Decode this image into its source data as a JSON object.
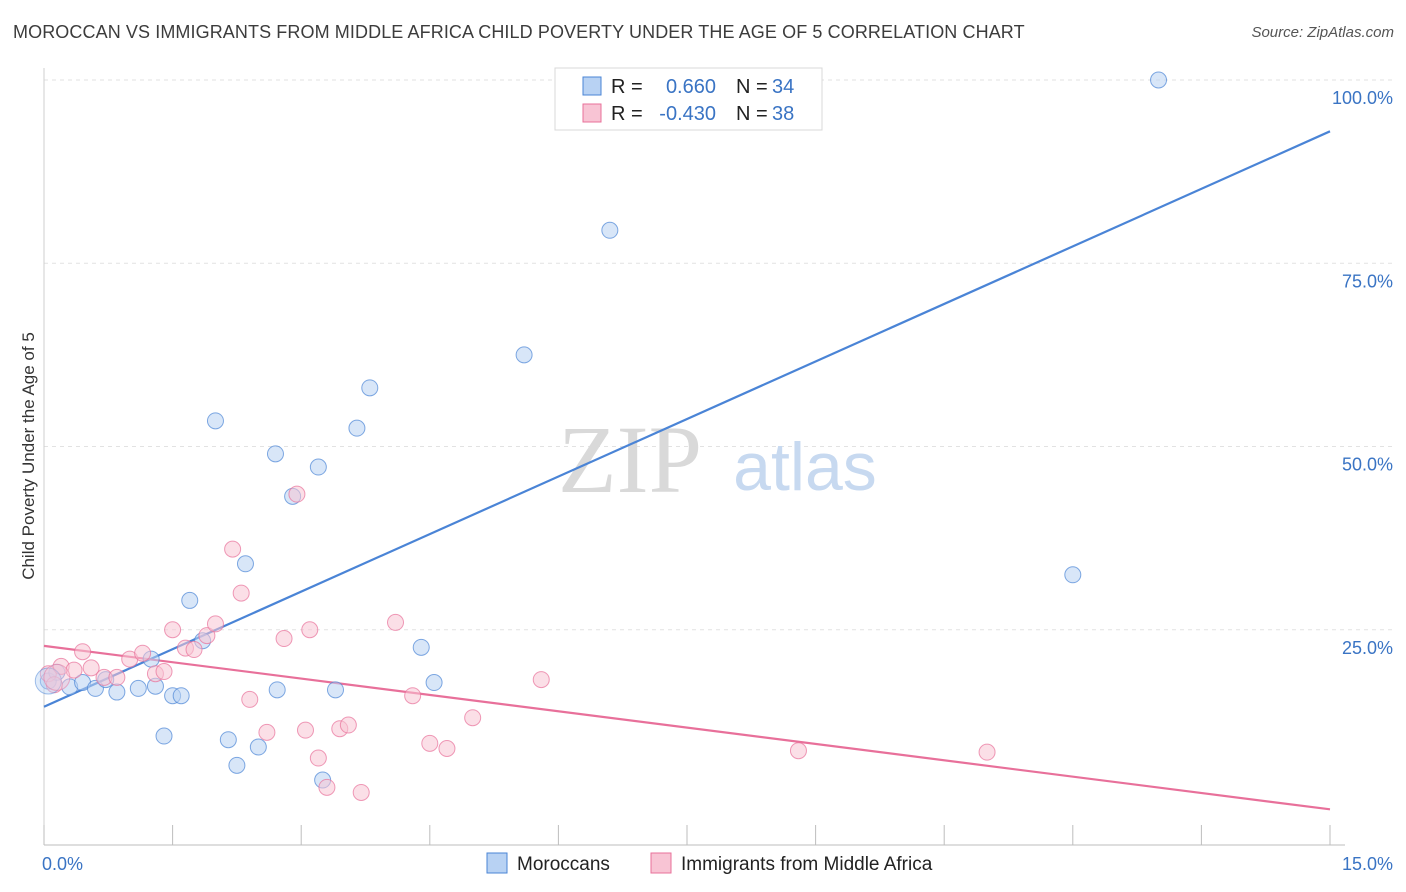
{
  "title": "MOROCCAN VS IMMIGRANTS FROM MIDDLE AFRICA CHILD POVERTY UNDER THE AGE OF 5 CORRELATION CHART",
  "source": "Source: ZipAtlas.com",
  "watermark": {
    "zip": "ZIP",
    "atlas": "atlas"
  },
  "colors": {
    "blue": "#4a84d6",
    "blue_fill": "#b8d2f3",
    "pink": "#e8709a",
    "pink_fill": "#f8c4d4",
    "tick": "#3a74c4"
  },
  "chart_data": {
    "type": "scatter",
    "ylabel": "Child Poverty Under the Age of 5",
    "xlim": [
      0,
      15
    ],
    "ylim": [
      0,
      100
    ],
    "x_tick_labels": [
      "0.0%",
      "15.0%"
    ],
    "y_ticks": [
      25,
      50,
      75,
      100
    ],
    "y_tick_labels": [
      "25.0%",
      "50.0%",
      "75.0%",
      "100.0%"
    ],
    "grid": true,
    "legend": {
      "placement": "top-center",
      "rows": [
        {
          "r_label": "R =",
          "r_value": "0.660",
          "n_label": "N =",
          "n_value": "34"
        },
        {
          "r_label": "R =",
          "r_value": "-0.430",
          "n_label": "N =",
          "n_value": "38"
        }
      ]
    },
    "series": [
      {
        "name": "Moroccans",
        "color": "#4a84d6",
        "trend": [
          [
            0,
            14.5
          ],
          [
            15,
            93.0
          ]
        ],
        "points": [
          [
            0.05,
            18.0
          ],
          [
            0.15,
            19.2
          ],
          [
            0.3,
            17.2
          ],
          [
            0.45,
            17.8
          ],
          [
            0.6,
            17.0
          ],
          [
            0.72,
            18.2
          ],
          [
            0.85,
            16.5
          ],
          [
            1.1,
            17.0
          ],
          [
            1.25,
            21.0
          ],
          [
            1.3,
            17.3
          ],
          [
            1.4,
            10.5
          ],
          [
            1.5,
            16.0
          ],
          [
            1.6,
            16.0
          ],
          [
            1.7,
            29.0
          ],
          [
            1.85,
            23.5
          ],
          [
            2.0,
            53.5
          ],
          [
            2.15,
            10.0
          ],
          [
            2.25,
            6.5
          ],
          [
            2.35,
            34.0
          ],
          [
            2.5,
            9.0
          ],
          [
            2.7,
            49.0
          ],
          [
            2.72,
            16.8
          ],
          [
            2.9,
            43.2
          ],
          [
            3.2,
            47.2
          ],
          [
            3.25,
            4.5
          ],
          [
            3.4,
            16.8
          ],
          [
            3.65,
            52.5
          ],
          [
            3.8,
            58.0
          ],
          [
            4.4,
            22.6
          ],
          [
            4.55,
            17.8
          ],
          [
            5.6,
            62.5
          ],
          [
            6.6,
            79.5
          ],
          [
            12.0,
            32.5
          ],
          [
            13.0,
            100.0
          ]
        ]
      },
      {
        "name": "Immigrants from Middle Africa",
        "color": "#e8709a",
        "trend": [
          [
            0,
            22.8
          ],
          [
            15,
            0.5
          ]
        ],
        "points": [
          [
            0.05,
            19.0
          ],
          [
            0.12,
            17.5
          ],
          [
            0.2,
            20.0
          ],
          [
            0.35,
            19.5
          ],
          [
            0.45,
            22.0
          ],
          [
            0.55,
            19.8
          ],
          [
            0.7,
            18.5
          ],
          [
            0.85,
            18.5
          ],
          [
            1.0,
            21.0
          ],
          [
            1.15,
            21.8
          ],
          [
            1.3,
            19.0
          ],
          [
            1.4,
            19.3
          ],
          [
            1.5,
            25.0
          ],
          [
            1.65,
            22.5
          ],
          [
            1.75,
            22.3
          ],
          [
            1.9,
            24.2
          ],
          [
            2.0,
            25.8
          ],
          [
            2.2,
            36.0
          ],
          [
            2.3,
            30.0
          ],
          [
            2.4,
            15.5
          ],
          [
            2.6,
            11.0
          ],
          [
            2.8,
            23.8
          ],
          [
            2.95,
            43.5
          ],
          [
            3.05,
            11.3
          ],
          [
            3.1,
            25.0
          ],
          [
            3.2,
            7.5
          ],
          [
            3.3,
            3.5
          ],
          [
            3.45,
            11.5
          ],
          [
            3.55,
            12.0
          ],
          [
            3.7,
            2.8
          ],
          [
            4.1,
            26.0
          ],
          [
            4.3,
            16.0
          ],
          [
            4.5,
            9.5
          ],
          [
            4.7,
            8.8
          ],
          [
            5.0,
            13.0
          ],
          [
            5.8,
            18.2
          ],
          [
            8.8,
            8.5
          ],
          [
            11.0,
            8.3
          ]
        ]
      }
    ]
  }
}
